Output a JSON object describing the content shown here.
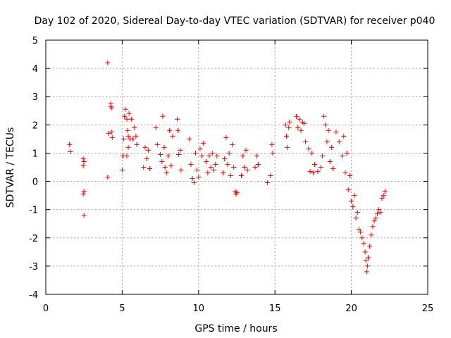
{
  "chart_data": {
    "type": "scatter",
    "title": "Day 102 of 2020, Sidereal Day-to-day VTEC variation (SDTVAR) for receiver p040",
    "xlabel": "GPS time / hours",
    "ylabel": "SDTVAR / TECUs",
    "xlim": [
      0,
      25
    ],
    "ylim": [
      -4,
      5
    ],
    "xticks": [
      "0",
      "5",
      "10",
      "15",
      "20",
      "25"
    ],
    "yticks": [
      "-4",
      "-3",
      "-2",
      "-1",
      "0",
      "1",
      "2",
      "3",
      "4",
      "5"
    ],
    "grid": true,
    "marker": "+",
    "color": "#ff0000",
    "series": [
      {
        "name": "SDTVAR",
        "points": [
          [
            1.55,
            1.3
          ],
          [
            1.6,
            1.05
          ],
          [
            2.45,
            0.8
          ],
          [
            2.45,
            0.55
          ],
          [
            2.5,
            0.7
          ],
          [
            2.5,
            -0.35
          ],
          [
            2.45,
            -0.45
          ],
          [
            2.5,
            -1.2
          ],
          [
            4.05,
            4.2
          ],
          [
            4.05,
            0.15
          ],
          [
            4.1,
            1.7
          ],
          [
            4.25,
            2.75
          ],
          [
            4.3,
            2.6
          ],
          [
            4.25,
            2.65
          ],
          [
            4.35,
            1.55
          ],
          [
            4.3,
            1.75
          ],
          [
            5.0,
            0.4
          ],
          [
            5.05,
            0.9
          ],
          [
            5.1,
            1.5
          ],
          [
            5.15,
            2.3
          ],
          [
            5.2,
            2.55
          ],
          [
            5.3,
            2.2
          ],
          [
            5.35,
            1.8
          ],
          [
            5.4,
            1.6
          ],
          [
            5.45,
            2.4
          ],
          [
            5.5,
            1.5
          ],
          [
            5.6,
            2.2
          ],
          [
            5.7,
            1.5
          ],
          [
            5.8,
            1.9
          ],
          [
            5.9,
            1.6
          ],
          [
            5.95,
            1.3
          ],
          [
            5.3,
            0.9
          ],
          [
            5.4,
            1.2
          ],
          [
            6.4,
            0.5
          ],
          [
            6.5,
            1.2
          ],
          [
            6.6,
            0.8
          ],
          [
            6.7,
            1.1
          ],
          [
            6.8,
            0.45
          ],
          [
            7.2,
            1.9
          ],
          [
            7.3,
            1.3
          ],
          [
            7.5,
            0.95
          ],
          [
            7.6,
            0.7
          ],
          [
            7.65,
            2.3
          ],
          [
            7.75,
            1.2
          ],
          [
            7.8,
            0.5
          ],
          [
            7.9,
            0.3
          ],
          [
            8.0,
            0.9
          ],
          [
            8.1,
            1.8
          ],
          [
            8.2,
            0.55
          ],
          [
            8.3,
            1.6
          ],
          [
            8.6,
            2.2
          ],
          [
            8.65,
            1.8
          ],
          [
            8.7,
            0.95
          ],
          [
            8.8,
            1.1
          ],
          [
            8.85,
            0.4
          ],
          [
            9.4,
            1.5
          ],
          [
            9.5,
            0.6
          ],
          [
            9.6,
            0.1
          ],
          [
            9.7,
            -0.05
          ],
          [
            9.8,
            1.0
          ],
          [
            9.9,
            0.4
          ],
          [
            10.0,
            0.15
          ],
          [
            10.1,
            1.15
          ],
          [
            10.2,
            0.9
          ],
          [
            10.3,
            1.35
          ],
          [
            10.5,
            0.7
          ],
          [
            10.6,
            0.3
          ],
          [
            10.7,
            0.9
          ],
          [
            10.8,
            0.5
          ],
          [
            10.9,
            1.0
          ],
          [
            11.0,
            0.4
          ],
          [
            11.1,
            0.6
          ],
          [
            11.2,
            0.9
          ],
          [
            11.6,
            0.3
          ],
          [
            11.7,
            0.8
          ],
          [
            11.8,
            1.55
          ],
          [
            11.9,
            0.6
          ],
          [
            12.0,
            1.0
          ],
          [
            12.1,
            0.2
          ],
          [
            12.2,
            1.3
          ],
          [
            12.3,
            0.5
          ],
          [
            12.4,
            -0.35
          ],
          [
            12.45,
            -0.45
          ],
          [
            12.5,
            -0.4
          ],
          [
            12.8,
            0.2
          ],
          [
            12.9,
            0.9
          ],
          [
            13.0,
            0.5
          ],
          [
            13.1,
            1.1
          ],
          [
            13.2,
            0.4
          ],
          [
            13.7,
            0.5
          ],
          [
            13.8,
            0.9
          ],
          [
            13.9,
            0.6
          ],
          [
            14.5,
            -0.05
          ],
          [
            14.7,
            0.2
          ],
          [
            14.8,
            1.3
          ],
          [
            14.85,
            1.0
          ],
          [
            15.7,
            2.0
          ],
          [
            15.75,
            1.6
          ],
          [
            15.8,
            1.2
          ],
          [
            15.9,
            1.9
          ],
          [
            15.95,
            2.1
          ],
          [
            16.4,
            2.3
          ],
          [
            16.5,
            1.9
          ],
          [
            16.6,
            2.2
          ],
          [
            16.7,
            1.8
          ],
          [
            16.8,
            2.1
          ],
          [
            16.9,
            2.05
          ],
          [
            17.0,
            1.4
          ],
          [
            17.2,
            1.15
          ],
          [
            17.4,
            1.0
          ],
          [
            17.6,
            0.6
          ],
          [
            17.8,
            0.35
          ],
          [
            17.3,
            0.35
          ],
          [
            17.5,
            0.3
          ],
          [
            18.0,
            0.5
          ],
          [
            18.1,
            0.9
          ],
          [
            18.2,
            2.3
          ],
          [
            18.3,
            2.0
          ],
          [
            18.4,
            1.4
          ],
          [
            18.5,
            1.8
          ],
          [
            18.6,
            0.7
          ],
          [
            18.7,
            1.2
          ],
          [
            18.8,
            0.45
          ],
          [
            19.0,
            1.75
          ],
          [
            19.2,
            1.4
          ],
          [
            19.4,
            0.9
          ],
          [
            19.5,
            1.6
          ],
          [
            19.6,
            0.3
          ],
          [
            19.7,
            1.0
          ],
          [
            19.8,
            -0.3
          ],
          [
            19.9,
            0.2
          ],
          [
            20.0,
            -0.7
          ],
          [
            20.1,
            -0.9
          ],
          [
            20.2,
            -0.5
          ],
          [
            20.3,
            -1.3
          ],
          [
            20.4,
            -1.1
          ],
          [
            20.5,
            -1.7
          ],
          [
            20.6,
            -1.8
          ],
          [
            20.7,
            -2.0
          ],
          [
            20.8,
            -2.2
          ],
          [
            20.9,
            -2.5
          ],
          [
            20.95,
            -2.8
          ],
          [
            21.0,
            -3.2
          ],
          [
            21.05,
            -3.0
          ],
          [
            21.1,
            -2.7
          ],
          [
            21.2,
            -2.3
          ],
          [
            21.3,
            -1.9
          ],
          [
            21.4,
            -1.6
          ],
          [
            21.5,
            -1.4
          ],
          [
            21.6,
            -1.3
          ],
          [
            21.7,
            -1.15
          ],
          [
            21.8,
            -1.0
          ],
          [
            21.9,
            -1.1
          ],
          [
            22.0,
            -0.6
          ],
          [
            22.1,
            -0.5
          ],
          [
            22.2,
            -0.35
          ]
        ]
      }
    ]
  }
}
